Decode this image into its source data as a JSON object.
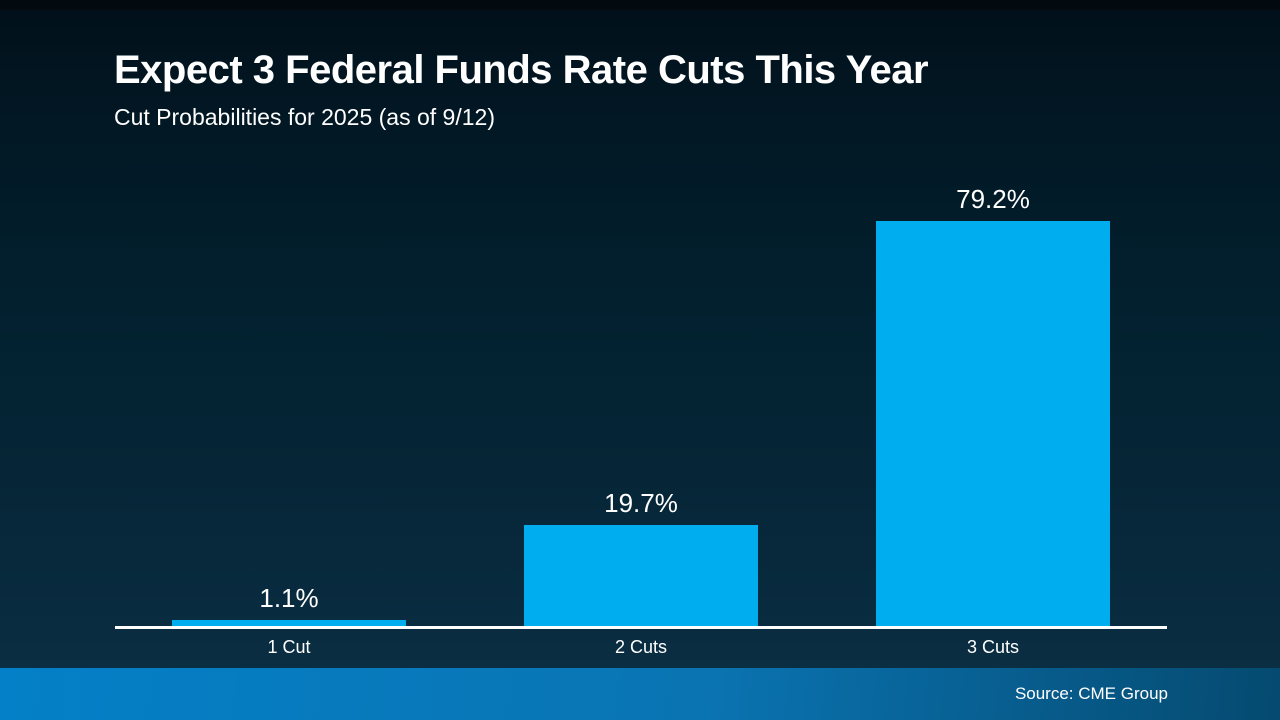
{
  "header": {
    "title": "Expect 3 Federal Funds Rate Cuts This Year",
    "subtitle": "Cut Probabilities for 2025 (as of 9/12)"
  },
  "footer": {
    "source": "Source: CME Group"
  },
  "colors": {
    "bar": "#00aeef",
    "axis": "#ffffff",
    "text": "#ffffff",
    "background_top": "#010f18",
    "background_bottom": "#0c3046",
    "footer_gradient_left": "#0480c8",
    "footer_gradient_right": "#054a70"
  },
  "chart_data": {
    "type": "bar",
    "title": "Expect 3 Federal Funds Rate Cuts This Year",
    "subtitle": "Cut Probabilities for 2025 (as of 9/12)",
    "categories": [
      "1 Cut",
      "2 Cuts",
      "3 Cuts"
    ],
    "values": [
      1.1,
      19.7,
      79.2
    ],
    "value_labels": [
      "1.1%",
      "19.7%",
      "79.2%"
    ],
    "xlabel": "",
    "ylabel": "",
    "ylim": [
      0,
      86
    ],
    "grid": false,
    "legend": false,
    "source": "Source: CME Group"
  }
}
